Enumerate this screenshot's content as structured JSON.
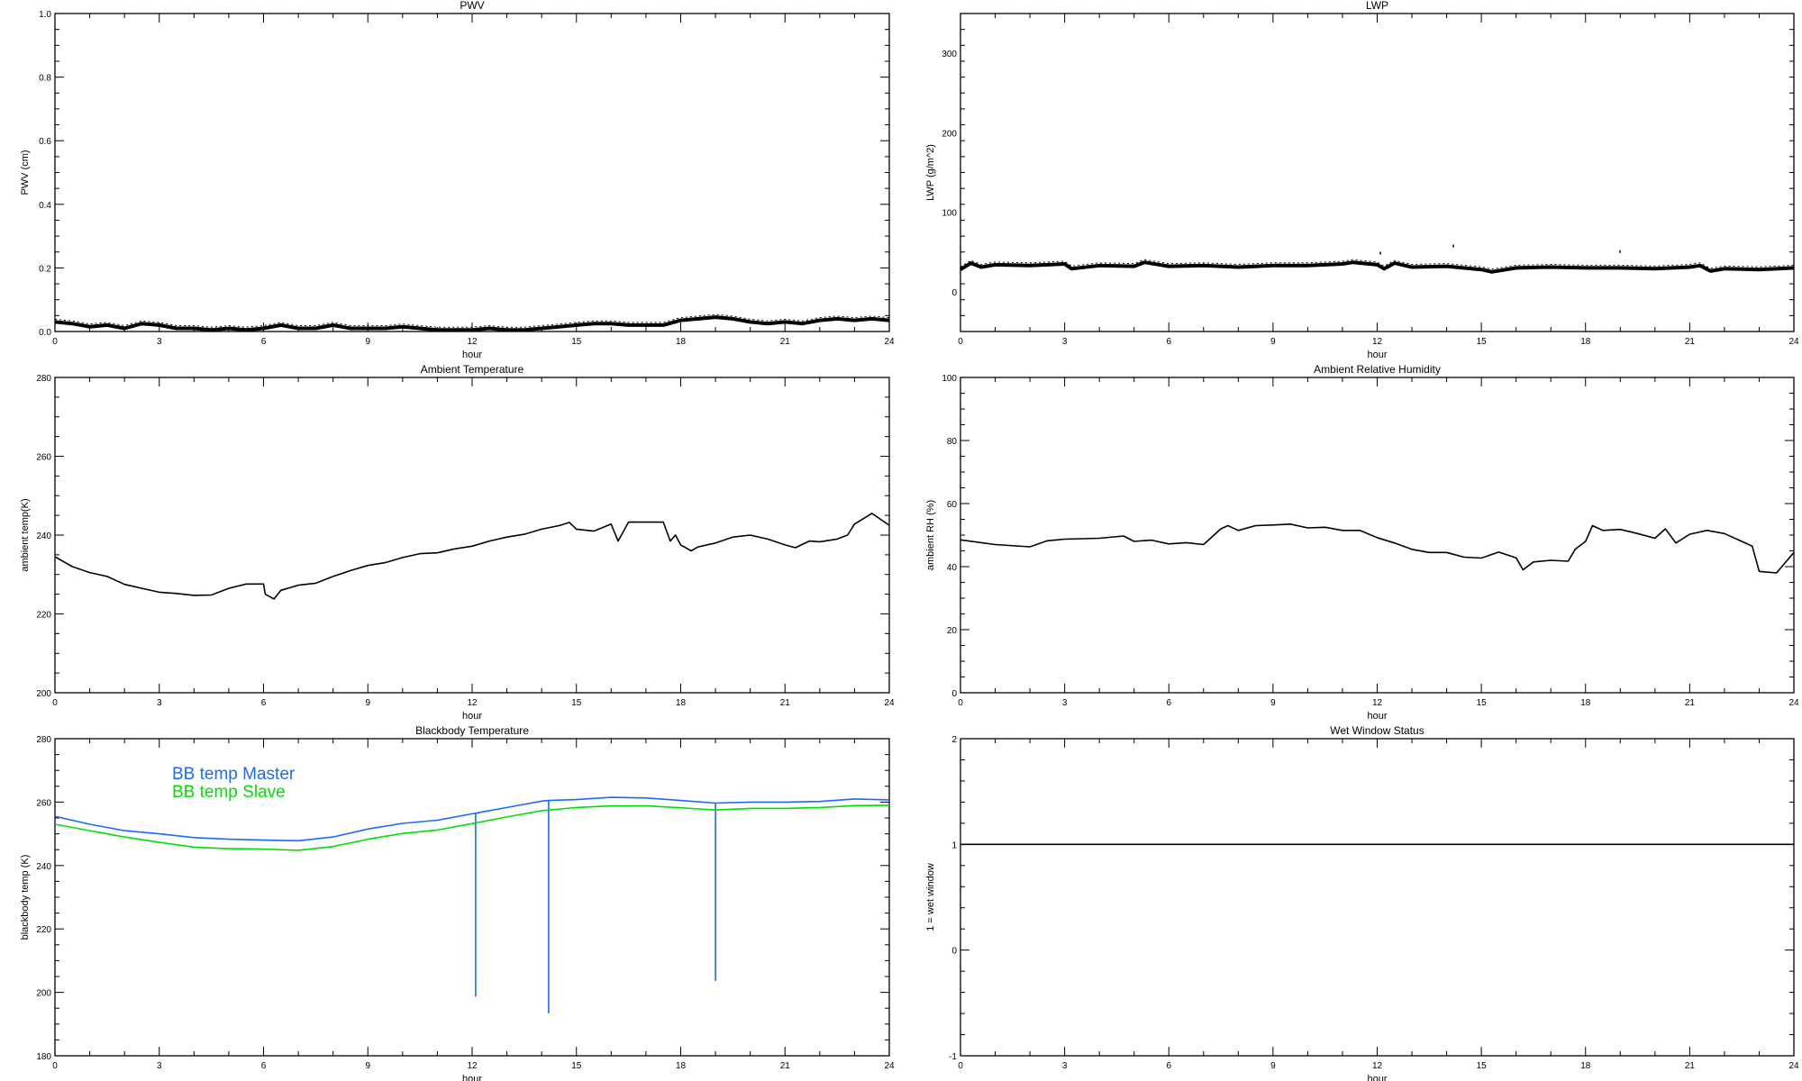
{
  "chart_data": [
    {
      "id": "pwv",
      "type": "line",
      "title": "PWV",
      "xlabel": "hour",
      "ylabel": "PWV (cm)",
      "xlim": [
        0,
        24
      ],
      "ylim": [
        0,
        1.0
      ],
      "grid": false,
      "xticks": [
        "0",
        "3",
        "6",
        "9",
        "12",
        "15",
        "18",
        "21",
        "24"
      ],
      "yticks": [
        "0.0",
        "0.2",
        "0.4",
        "0.6",
        "0.8",
        "1.0"
      ],
      "series": [
        {
          "color": "#000000",
          "noisy": true,
          "x": [
            0,
            0.5,
            1,
            1.5,
            2,
            2.5,
            3,
            3.5,
            4,
            4.5,
            5,
            5.5,
            6,
            6.5,
            7,
            7.5,
            8,
            8.5,
            9,
            9.5,
            10,
            10.5,
            11,
            11.5,
            12,
            12.5,
            13,
            13.5,
            14,
            14.5,
            15,
            15.5,
            16,
            16.5,
            17,
            17.5,
            18,
            18.5,
            19,
            19.5,
            20,
            20.5,
            21,
            21.5,
            22,
            22.5,
            23,
            23.5,
            24
          ],
          "y": [
            0.03,
            0.025,
            0.015,
            0.02,
            0.01,
            0.025,
            0.02,
            0.01,
            0.01,
            0.005,
            0.01,
            0.005,
            0.01,
            0.02,
            0.01,
            0.01,
            0.02,
            0.01,
            0.01,
            0.01,
            0.015,
            0.01,
            0.005,
            0.005,
            0.005,
            0.01,
            0.005,
            0.005,
            0.01,
            0.015,
            0.02,
            0.025,
            0.025,
            0.02,
            0.02,
            0.02,
            0.035,
            0.04,
            0.045,
            0.04,
            0.03,
            0.025,
            0.03,
            0.025,
            0.035,
            0.04,
            0.035,
            0.04,
            0.035
          ]
        }
      ]
    },
    {
      "id": "lwp",
      "type": "line",
      "title": "LWP",
      "xlabel": "hour",
      "ylabel": "LWP (g/m^2)",
      "xlim": [
        0,
        24
      ],
      "ylim": [
        -50,
        350
      ],
      "grid": false,
      "xticks": [
        "0",
        "3",
        "6",
        "9",
        "12",
        "15",
        "18",
        "21",
        "24"
      ],
      "yticks": [
        "0",
        "100",
        "200",
        "300"
      ],
      "series": [
        {
          "color": "#000000",
          "noisy": true,
          "x": [
            0,
            0.3,
            0.6,
            1,
            2,
            3,
            3.2,
            4,
            5,
            5.3,
            6,
            7,
            8,
            9,
            10,
            11,
            11.3,
            12,
            12.2,
            12.5,
            13,
            14,
            15,
            15.3,
            16,
            17,
            18,
            19,
            20,
            21,
            21.3,
            21.6,
            22,
            23,
            24
          ],
          "y": [
            28,
            36,
            31,
            34,
            33,
            35,
            29,
            33,
            32,
            37,
            32,
            33,
            31,
            33,
            33,
            35,
            37,
            34,
            29,
            36,
            31,
            32,
            28,
            25,
            30,
            31,
            30,
            30,
            29,
            31,
            33,
            26,
            29,
            28,
            30
          ]
        },
        {
          "color": "#000000",
          "points": true,
          "x": [
            12.1,
            14.2,
            19.0
          ],
          "y": [
            48,
            57,
            50
          ]
        }
      ]
    },
    {
      "id": "ambient-temp",
      "type": "line",
      "title": "Ambient Temperature",
      "xlabel": "hour",
      "ylabel": "ambient temp(K)",
      "xlim": [
        0,
        24
      ],
      "ylim": [
        200,
        280
      ],
      "grid": false,
      "xticks": [
        "0",
        "3",
        "6",
        "9",
        "12",
        "15",
        "18",
        "21",
        "24"
      ],
      "yticks": [
        "200",
        "220",
        "240",
        "260",
        "280"
      ],
      "series": [
        {
          "color": "#000000",
          "x": [
            0,
            0.5,
            1,
            1.5,
            2,
            2.5,
            3,
            3.5,
            4,
            4.5,
            5,
            5.5,
            6,
            6.05,
            6.3,
            6.5,
            7,
            7.5,
            8,
            8.5,
            9,
            9.5,
            10,
            10.5,
            11,
            11.5,
            12,
            12.5,
            13,
            13.5,
            14,
            14.5,
            14.8,
            15,
            15.5,
            16,
            16.2,
            16.5,
            17,
            17.5,
            17.7,
            17.85,
            18,
            18.3,
            18.5,
            19,
            19.5,
            20,
            20.5,
            21,
            21.3,
            21.7,
            22,
            22.5,
            22.8,
            23,
            23.5,
            24
          ],
          "y": [
            234.5,
            232,
            230.5,
            229.5,
            227.5,
            226.5,
            225.5,
            225.2,
            224.7,
            224.8,
            226.5,
            227.6,
            227.6,
            225,
            223.8,
            226,
            227.3,
            227.8,
            229.5,
            231,
            232.3,
            233,
            234.3,
            235.3,
            235.5,
            236.5,
            237.2,
            238.5,
            239.5,
            240.2,
            241.5,
            242.4,
            243.2,
            241.5,
            241,
            242.8,
            238.5,
            243.3,
            243.3,
            243.3,
            238.5,
            240,
            237.5,
            236,
            237,
            238,
            239.5,
            240,
            239,
            237.5,
            236.8,
            238.5,
            238.3,
            239,
            240,
            242.8,
            245.5,
            242.5
          ]
        }
      ]
    },
    {
      "id": "ambient-rh",
      "type": "line",
      "title": "Ambient Relative Humidity",
      "xlabel": "hour",
      "ylabel": "ambient RH (%)",
      "xlim": [
        0,
        24
      ],
      "ylim": [
        0,
        100
      ],
      "grid": false,
      "xticks": [
        "0",
        "3",
        "6",
        "9",
        "12",
        "15",
        "18",
        "21",
        "24"
      ],
      "yticks": [
        "0",
        "20",
        "40",
        "60",
        "80",
        "100"
      ],
      "series": [
        {
          "color": "#000000",
          "x": [
            0,
            1,
            2,
            2.5,
            3,
            4,
            4.7,
            5,
            5.5,
            6,
            6.5,
            7,
            7.5,
            7.7,
            8,
            8.5,
            9,
            9.5,
            10,
            10.5,
            11,
            11.5,
            12,
            12.5,
            13,
            13.5,
            14,
            14.5,
            15,
            15.5,
            16,
            16.2,
            16.5,
            17,
            17.5,
            17.7,
            18,
            18.2,
            18.5,
            19,
            19.5,
            20,
            20.3,
            20.6,
            21,
            21.5,
            22,
            22.5,
            22.8,
            23,
            23.5,
            24
          ],
          "y": [
            48.5,
            47,
            46.3,
            48.2,
            48.7,
            49,
            49.7,
            48,
            48.4,
            47.2,
            47.6,
            47,
            52,
            53,
            51.5,
            53,
            53.2,
            53.5,
            52.3,
            52.5,
            51.5,
            51.5,
            49.2,
            47.5,
            45.5,
            44.5,
            44.5,
            43,
            42.7,
            44.6,
            42.8,
            39,
            41.5,
            42,
            41.7,
            45.5,
            48,
            53,
            51.5,
            51.8,
            50.5,
            49,
            52,
            47.5,
            50.3,
            51.5,
            50.5,
            48,
            46.5,
            38.5,
            38,
            44.5
          ]
        }
      ]
    },
    {
      "id": "blackbody-temp",
      "type": "line",
      "title": "Blackbody Temperature",
      "xlabel": "hour",
      "ylabel": "blackbody temp (K)",
      "xlim": [
        0,
        24
      ],
      "ylim": [
        180,
        280
      ],
      "grid": false,
      "legend": "top-left",
      "xticks": [
        "0",
        "3",
        "6",
        "9",
        "12",
        "15",
        "18",
        "21",
        "24"
      ],
      "yticks": [
        "180",
        "200",
        "220",
        "240",
        "260",
        "280"
      ],
      "series": [
        {
          "name": "BB temp Master",
          "color": "#1a6aff",
          "x": [
            0,
            1,
            2,
            3,
            4,
            5,
            6,
            7,
            8,
            9,
            10,
            11,
            12,
            12.1,
            12.1,
            12.1,
            13,
            14,
            14.2,
            14.2,
            14.2,
            15,
            16,
            17,
            18,
            19,
            19.0,
            19.0,
            20,
            21,
            22,
            23,
            24
          ],
          "y": [
            255.5,
            253,
            251,
            250,
            248.8,
            248.3,
            248,
            247.8,
            249,
            251.5,
            253.3,
            254.3,
            256.3,
            256.5,
            198.8,
            256.5,
            258.3,
            260.3,
            260.5,
            193.6,
            260.5,
            260.8,
            261.5,
            261.3,
            260.5,
            259.7,
            203.8,
            259.7,
            260,
            260,
            260.2,
            261,
            260.7
          ]
        },
        {
          "name": "BB temp Slave",
          "color": "#00e000",
          "x": [
            0,
            1,
            2,
            3,
            4,
            5,
            6,
            7,
            8,
            9,
            10,
            11,
            12,
            13,
            14,
            15,
            16,
            17,
            18,
            19,
            20,
            21,
            22,
            23,
            24
          ],
          "y": [
            253,
            251,
            249,
            247.3,
            245.8,
            245.3,
            245.2,
            244.8,
            246,
            248.3,
            250.1,
            251.2,
            253.2,
            255.3,
            257.3,
            258.3,
            258.8,
            258.8,
            258.2,
            257.5,
            258,
            258,
            258.3,
            258.9,
            259
          ]
        }
      ]
    },
    {
      "id": "wet-window",
      "type": "line",
      "title": "Wet Window Status",
      "xlabel": "hour",
      "ylabel": "1 = wet window",
      "xlim": [
        0,
        24
      ],
      "ylim": [
        -1,
        2
      ],
      "grid": false,
      "xticks": [
        "0",
        "3",
        "6",
        "9",
        "12",
        "15",
        "18",
        "21",
        "24"
      ],
      "yticks": [
        "-1",
        "0",
        "1",
        "2"
      ],
      "series": [
        {
          "color": "#000000",
          "x": [
            0,
            24
          ],
          "y": [
            1,
            1
          ]
        }
      ]
    }
  ]
}
